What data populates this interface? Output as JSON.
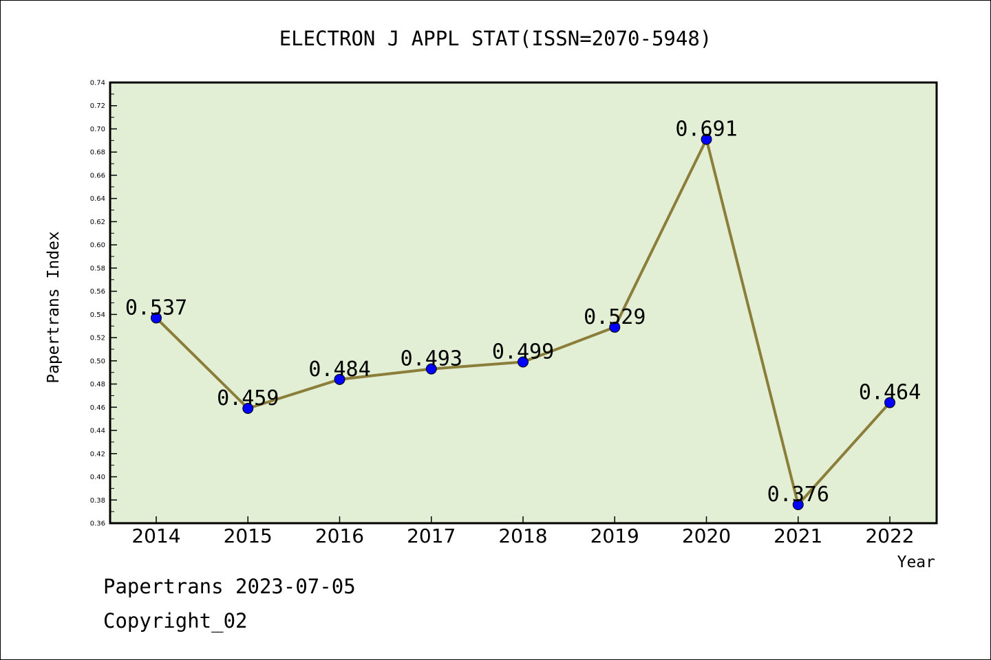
{
  "chart_data": {
    "type": "line",
    "title": "ELECTRON J APPL STAT(ISSN=2070-5948)",
    "xlabel": "Year",
    "ylabel": "Papertrans Index",
    "categories": [
      "2014",
      "2015",
      "2016",
      "2017",
      "2018",
      "2019",
      "2020",
      "2021",
      "2022"
    ],
    "series": [
      {
        "values": [
          0.537,
          0.459,
          0.484,
          0.493,
          0.499,
          0.529,
          0.691,
          0.376,
          0.464
        ]
      }
    ],
    "data_labels": [
      "0.537",
      "0.459",
      "0.484",
      "0.493",
      "0.499",
      "0.529",
      "0.691",
      "0.376",
      "0.464"
    ],
    "ylim": [
      0.36,
      0.74
    ],
    "yticks": [
      "0.36",
      "0.38",
      "0.40",
      "0.42",
      "0.44",
      "0.46",
      "0.48",
      "0.50",
      "0.52",
      "0.54",
      "0.56",
      "0.58",
      "0.60",
      "0.62",
      "0.64",
      "0.66",
      "0.68",
      "0.70",
      "0.72",
      "0.74"
    ],
    "grid": false,
    "colors": {
      "plot_background": "#e2efd4",
      "line": "#8b7d3a",
      "marker": "#0000ff"
    }
  },
  "footer": {
    "date_line": "Papertrans 2023-07-05",
    "copyright_line": "Copyright_02"
  }
}
